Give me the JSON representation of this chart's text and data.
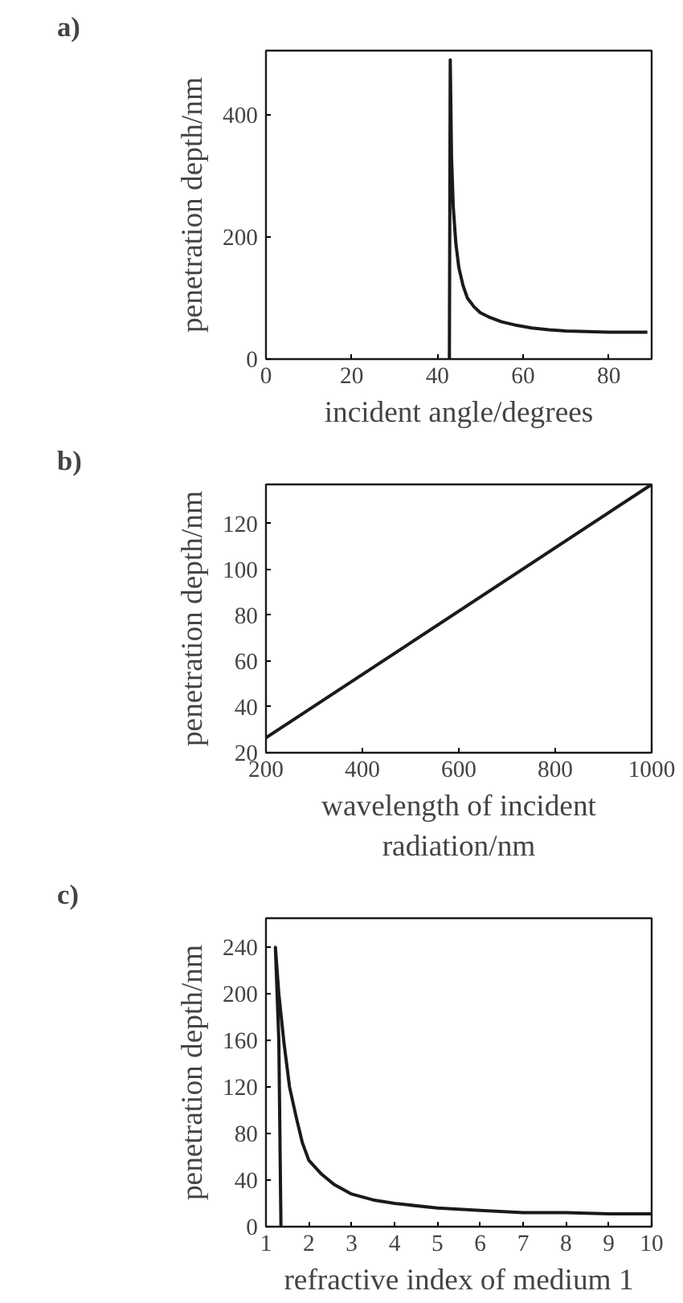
{
  "chart_data": [
    {
      "type": "line",
      "title": "a)",
      "xlabel": "incident angle/degrees",
      "ylabel": "penetration depth/nm",
      "xlim": [
        0,
        90
      ],
      "ylim": [
        0,
        505
      ],
      "xticks": [
        0,
        20,
        40,
        60,
        80
      ],
      "yticks": [
        0,
        200,
        400
      ],
      "grid": false,
      "marker": "none",
      "line_style": "solid",
      "series": [
        {
          "color": "#1a1a1a",
          "x": [
            42.8,
            43.0,
            43.3,
            43.7,
            44.3,
            45.0,
            46.0,
            47.0,
            48.5,
            50.0,
            52.0,
            55.0,
            58.0,
            62.0,
            66.0,
            70.0,
            75.0,
            80.0,
            85.0,
            89.0
          ],
          "values": [
            0,
            490,
            330,
            250,
            190,
            150,
            120,
            100,
            86,
            76,
            69,
            61,
            56,
            51,
            48,
            46,
            45,
            44,
            44,
            44
          ]
        }
      ]
    },
    {
      "type": "line",
      "title": "b)",
      "xlabel": "wavelength of incident\nradiation/nm",
      "ylabel": "penetration depth/nm",
      "xlim": [
        200,
        1000
      ],
      "ylim": [
        20,
        137
      ],
      "xticks": [
        200,
        400,
        600,
        800,
        1000
      ],
      "yticks": [
        20,
        40,
        60,
        80,
        100,
        120
      ],
      "grid": false,
      "marker": "none",
      "line_style": "solid",
      "series": [
        {
          "color": "#1a1a1a",
          "x": [
            200,
            1000
          ],
          "values": [
            26.5,
            137
          ]
        }
      ]
    },
    {
      "type": "line",
      "title": "c)",
      "xlabel": "refractive index of medium 1",
      "ylabel": "penetration depth/nm",
      "xlim": [
        1,
        10
      ],
      "ylim": [
        0,
        265
      ],
      "xticks": [
        1,
        2,
        3,
        4,
        5,
        6,
        7,
        8,
        9,
        10
      ],
      "yticks": [
        0,
        40,
        80,
        120,
        160,
        200,
        240
      ],
      "grid": false,
      "marker": "none",
      "line_style": "solid",
      "series": [
        {
          "color": "#1a1a1a",
          "x": [
            1.35,
            1.3,
            1.22,
            1.3,
            1.42,
            1.55,
            1.7,
            1.85,
            2.0,
            2.3,
            2.6,
            3.0,
            3.5,
            4.0,
            5.0,
            6.0,
            7.0,
            8.0,
            9.0,
            10.0
          ],
          "values": [
            0,
            160,
            240,
            200,
            158,
            120,
            95,
            72,
            57,
            45,
            36,
            28,
            23,
            20,
            16,
            14,
            12,
            12,
            11,
            11
          ]
        }
      ]
    }
  ]
}
